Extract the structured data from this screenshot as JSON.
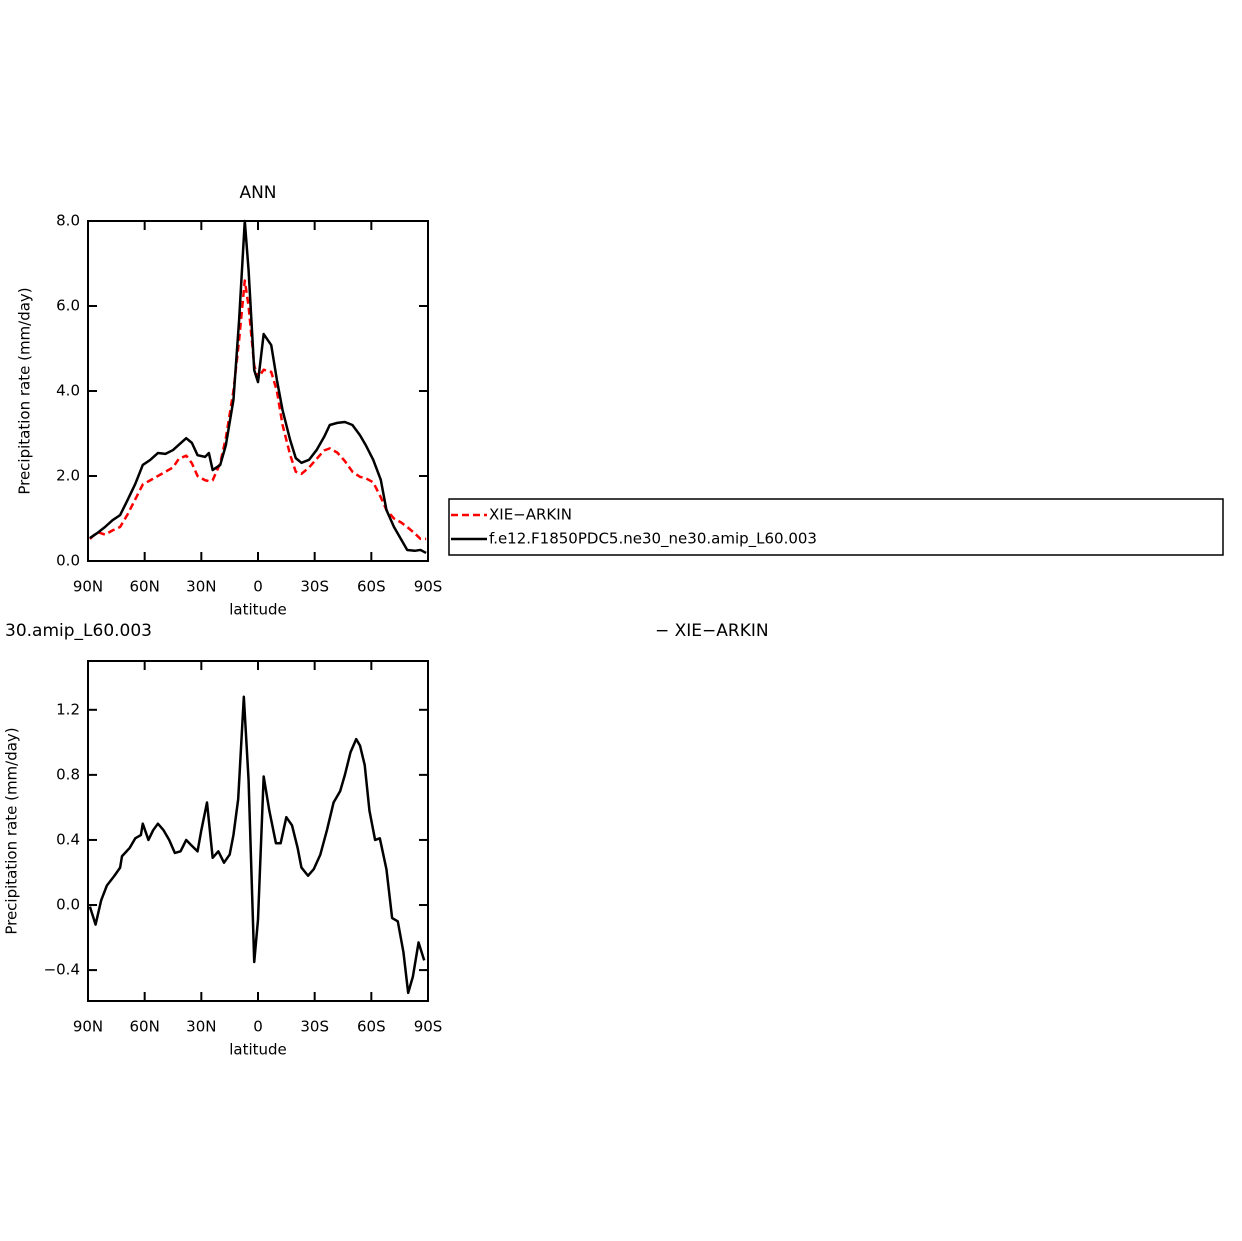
{
  "chart_data": [
    {
      "type": "line",
      "title": "ANN",
      "x_label": "latitude",
      "y_label": "Precipitation rate (mm/day)",
      "xlim": [
        90,
        -90
      ],
      "xticks": [
        {
          "value": 90,
          "label": "90N"
        },
        {
          "value": 60,
          "label": "60N"
        },
        {
          "value": 30,
          "label": "30N"
        },
        0,
        {
          "value": -30,
          "label": "30S"
        },
        {
          "value": -60,
          "label": "60S"
        },
        {
          "value": -90,
          "label": "90S"
        }
      ],
      "ylim": [
        0,
        8
      ],
      "yticks": [
        {
          "value": 0,
          "label": "0.0"
        },
        {
          "value": 2,
          "label": "2.0"
        },
        {
          "value": 4,
          "label": "4.0"
        },
        {
          "value": 6,
          "label": "6.0"
        },
        {
          "value": 8,
          "label": "8.0"
        }
      ],
      "x": [
        89,
        85,
        81,
        77,
        73,
        69,
        65,
        61,
        57,
        53,
        49,
        45,
        42,
        38,
        35,
        32,
        28,
        26,
        24,
        20,
        17,
        13,
        10,
        7,
        5,
        2,
        0,
        -3,
        -7,
        -10,
        -13,
        -17,
        -20,
        -23,
        -27,
        -31,
        -35,
        -38,
        -42,
        -46,
        -50,
        -54,
        -57,
        -61,
        -65,
        -68,
        -72,
        -76,
        -79,
        -83,
        -86,
        -89
      ],
      "series": [
        {
          "name": "XIE−ARKIN",
          "color": "#ff0000",
          "dash": true,
          "values": [
            0.52,
            0.68,
            0.62,
            0.72,
            0.8,
            1.1,
            1.45,
            1.8,
            1.9,
            2.0,
            2.1,
            2.2,
            2.4,
            2.48,
            2.3,
            2.0,
            1.9,
            1.88,
            1.9,
            2.3,
            2.9,
            4.0,
            5.2,
            6.6,
            6.0,
            4.6,
            4.3,
            4.5,
            4.45,
            4.0,
            3.2,
            2.5,
            2.1,
            2.05,
            2.2,
            2.4,
            2.6,
            2.65,
            2.55,
            2.35,
            2.1,
            1.98,
            1.95,
            1.85,
            1.5,
            1.2,
            1.0,
            0.9,
            0.8,
            0.65,
            0.52,
            0.52
          ]
        },
        {
          "name": "f.e12.F1850PDC5.ne30_ne30.amip_L60.003",
          "color": "#000000",
          "dash": false,
          "values": [
            0.54,
            0.66,
            0.8,
            0.96,
            1.08,
            1.44,
            1.81,
            2.26,
            2.38,
            2.54,
            2.52,
            2.61,
            2.73,
            2.89,
            2.78,
            2.49,
            2.45,
            2.54,
            2.14,
            2.26,
            2.73,
            3.79,
            5.67,
            8.0,
            6.85,
            4.49,
            4.21,
            5.34,
            5.08,
            4.26,
            3.55,
            2.85,
            2.42,
            2.31,
            2.38,
            2.61,
            2.92,
            3.2,
            3.25,
            3.27,
            3.2,
            2.96,
            2.73,
            2.38,
            1.91,
            1.2,
            0.8,
            0.49,
            0.26,
            0.24,
            0.26,
            0.19
          ]
        }
      ],
      "legend": "right"
    },
    {
      "type": "line",
      "title_left": "30.amip_L60.003",
      "title_right": "− XIE−ARKIN",
      "x_label": "latitude",
      "y_label": "Precipitation rate (mm/day)",
      "xlim": [
        90,
        -90
      ],
      "xticks": [
        {
          "value": 90,
          "label": "90N"
        },
        {
          "value": 60,
          "label": "60N"
        },
        {
          "value": 30,
          "label": "30N"
        },
        0,
        {
          "value": -30,
          "label": "30S"
        },
        {
          "value": -60,
          "label": "60S"
        },
        {
          "value": -90,
          "label": "90S"
        }
      ],
      "ylim": [
        -0.59,
        1.5
      ],
      "yticks": [
        {
          "value": -0.4,
          "label": "−0.4"
        },
        {
          "value": 0,
          "label": "0.0"
        },
        0.4,
        0.8,
        1.2
      ],
      "x": [
        89,
        86,
        83,
        80,
        76,
        73,
        72,
        68,
        65,
        62,
        61,
        58,
        55.5,
        53,
        50,
        47,
        44,
        41,
        38,
        35.5,
        32,
        30,
        27,
        24,
        21,
        18,
        15,
        13,
        10.5,
        7.5,
        5,
        2,
        0,
        -3,
        -6,
        -9.5,
        -12,
        -15,
        -18,
        -21,
        -23,
        -26.5,
        -29.5,
        -33,
        -36.5,
        -40,
        -43.5,
        -46,
        -49,
        -52,
        -54,
        -56.5,
        -59,
        -62,
        -64.5,
        -68,
        -71,
        -74,
        -77,
        -79.5,
        -82,
        -85,
        -88
      ],
      "series": [
        {
          "color": "#000000",
          "dash": false,
          "values": [
            -0.01,
            -0.12,
            0.03,
            0.12,
            0.18,
            0.23,
            0.3,
            0.35,
            0.41,
            0.43,
            0.5,
            0.4,
            0.46,
            0.5,
            0.46,
            0.4,
            0.32,
            0.33,
            0.4,
            0.37,
            0.33,
            0.46,
            0.63,
            0.29,
            0.33,
            0.26,
            0.31,
            0.43,
            0.65,
            1.28,
            0.77,
            -0.35,
            -0.09,
            0.79,
            0.58,
            0.38,
            0.38,
            0.54,
            0.49,
            0.35,
            0.23,
            0.18,
            0.22,
            0.31,
            0.46,
            0.63,
            0.7,
            0.8,
            0.94,
            1.02,
            0.98,
            0.86,
            0.58,
            0.4,
            0.41,
            0.22,
            -0.08,
            -0.1,
            -0.29,
            -0.54,
            -0.44,
            -0.23,
            -0.34
          ]
        }
      ]
    }
  ]
}
